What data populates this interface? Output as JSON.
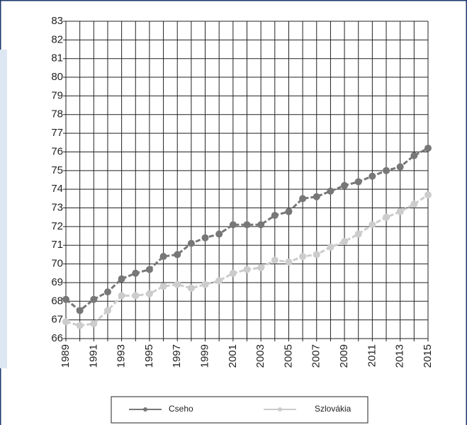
{
  "chart_data": {
    "type": "line",
    "x": [
      1989,
      1990,
      1991,
      1992,
      1993,
      1994,
      1995,
      1996,
      1997,
      1998,
      1999,
      2000,
      2001,
      2002,
      2003,
      2004,
      2005,
      2006,
      2007,
      2008,
      2009,
      2010,
      2011,
      2012,
      2013,
      2014,
      2015
    ],
    "series": [
      {
        "name": "Cseho",
        "color": "#777777",
        "values": [
          68.1,
          67.5,
          68.1,
          68.5,
          69.2,
          69.5,
          69.7,
          70.4,
          70.5,
          71.1,
          71.4,
          71.6,
          72.1,
          72.1,
          72.1,
          72.6,
          72.8,
          73.5,
          73.6,
          73.9,
          74.2,
          74.4,
          74.7,
          75.0,
          75.2,
          75.8,
          76.2
        ]
      },
      {
        "name": "Szlovákia",
        "color": "#cccccc",
        "values": [
          66.9,
          66.7,
          66.8,
          67.5,
          68.3,
          68.3,
          68.4,
          68.8,
          68.9,
          68.7,
          68.9,
          69.1,
          69.5,
          69.7,
          69.8,
          70.2,
          70.1,
          70.4,
          70.5,
          70.9,
          71.2,
          71.6,
          72.1,
          72.5,
          72.8,
          73.2,
          73.7
        ]
      }
    ],
    "xlim": [
      1989,
      2015
    ],
    "xticks": [
      1989,
      1991,
      1993,
      1995,
      1997,
      1999,
      2001,
      2003,
      2005,
      2007,
      2009,
      2011,
      2013,
      2015
    ],
    "ylim": [
      66,
      83
    ],
    "yticks": [
      66,
      67,
      68,
      69,
      70,
      71,
      72,
      73,
      74,
      75,
      76,
      77,
      78,
      79,
      80,
      81,
      82,
      83
    ],
    "grid": true
  }
}
